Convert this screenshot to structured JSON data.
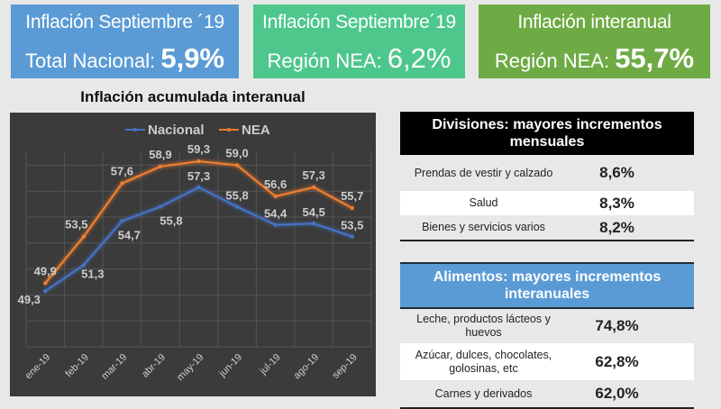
{
  "kpis": [
    {
      "title": "Inflación Septiembre ´19",
      "label": "Total Nacional: ",
      "value": "5,9%",
      "color": "#5b9bd5"
    },
    {
      "title": "Inflación Septiembre´19",
      "label": "Región NEA: ",
      "value": "6,2%",
      "color": "#4ec78c"
    },
    {
      "title": "Inflación interanual",
      "label": "Región NEA: ",
      "value": "55,7%",
      "color": "#6fab45"
    }
  ],
  "chart_data": {
    "type": "line",
    "title": "Inflación acumulada interanual",
    "categories": [
      "ene-19",
      "feb-19",
      "mar-19",
      "abr-19",
      "may-19",
      "jun-19",
      "jul-19",
      "ago-19",
      "sep-19"
    ],
    "series": [
      {
        "name": "Nacional",
        "color": "#4472c4",
        "values": [
          49.3,
          51.3,
          54.7,
          55.8,
          57.3,
          55.8,
          54.4,
          54.5,
          53.5
        ],
        "labels": [
          "49,3",
          "51,3",
          "54,7",
          "55,8",
          "57,3",
          "55,8",
          "54,4",
          "54,5",
          "53,5"
        ]
      },
      {
        "name": "NEA",
        "color": "#ed7d31",
        "values": [
          49.9,
          53.5,
          57.6,
          58.9,
          59.3,
          59.0,
          56.6,
          57.3,
          55.7
        ],
        "labels": [
          "49,9",
          "53,5",
          "57,6",
          "58,9",
          "59,3",
          "59,0",
          "56,6",
          "57,3",
          "55,7"
        ]
      }
    ],
    "ylim": [
      44,
      60
    ],
    "grid": true,
    "legend": "top"
  },
  "divisiones": {
    "title": "Divisiones: mayores incrementos mensuales",
    "rows": [
      {
        "name": "Prendas de vestir y calzado",
        "value": "8,6%"
      },
      {
        "name": "Salud",
        "value": "8,3%"
      },
      {
        "name": "Bienes y servicios varios",
        "value": "8,2%"
      }
    ]
  },
  "alimentos": {
    "title": "Alimentos: mayores incrementos interanuales",
    "rows": [
      {
        "name": "Leche, productos lácteos y huevos",
        "value": "74,8%"
      },
      {
        "name": "Azúcar, dulces, chocolates, golosinas, etc",
        "value": "62,8%"
      },
      {
        "name": "Carnes y derivados",
        "value": "62,0%"
      }
    ]
  }
}
